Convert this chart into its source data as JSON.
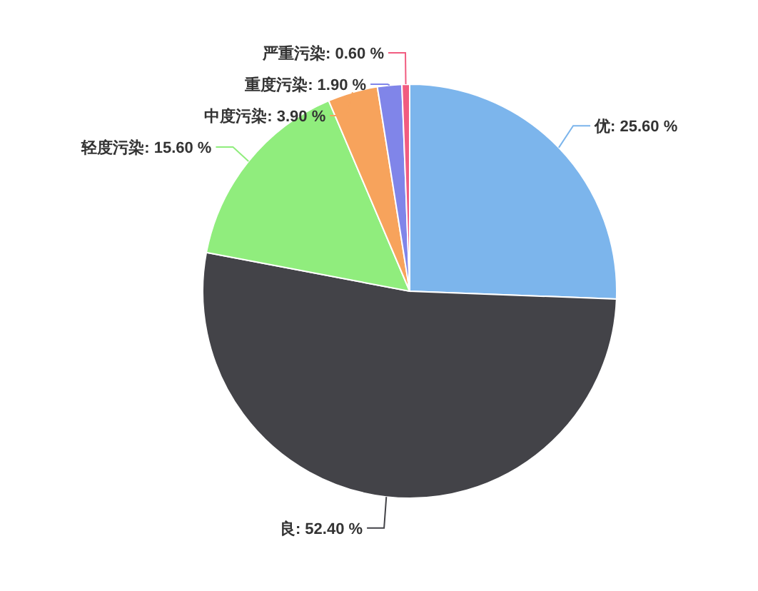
{
  "chart_data": {
    "type": "pie",
    "categories": [
      "优",
      "良",
      "轻度污染",
      "中度污染",
      "重度污染",
      "严重污染"
    ],
    "values": [
      25.6,
      52.4,
      15.6,
      3.9,
      1.9,
      0.6
    ],
    "colors": [
      "#7cb5ec",
      "#434348",
      "#90ed7d",
      "#f7a35c",
      "#8085e9",
      "#f15c80"
    ],
    "value_labels": [
      "25.60 %",
      "52.40 %",
      "15.60 %",
      "3.90 %",
      "1.90 %",
      "0.60 %"
    ]
  }
}
